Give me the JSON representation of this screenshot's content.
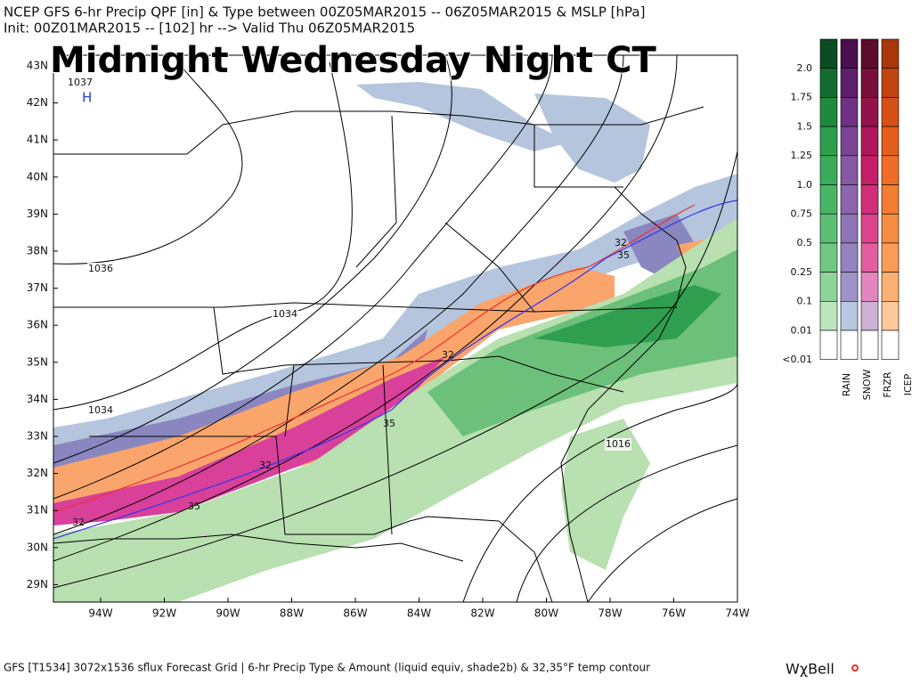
{
  "header": {
    "line1": "NCEP GFS 6-hr Precip QPF [in] & Type between 00Z05MAR2015 -- 06Z05MAR2015 & MSLP [hPa]",
    "line2": "Init: 00Z01MAR2015 -- [102] hr --> Valid Thu 06Z05MAR2015"
  },
  "overlay_title": "Midnight Wednesday Night CT",
  "map": {
    "lat_labels": [
      "43N",
      "42N",
      "41N",
      "40N",
      "39N",
      "38N",
      "37N",
      "36N",
      "35N",
      "34N",
      "33N",
      "32N",
      "31N",
      "30N",
      "29N"
    ],
    "lon_labels": [
      "94W",
      "92W",
      "90W",
      "88W",
      "86W",
      "84W",
      "82W",
      "80W",
      "78W",
      "76W",
      "74W"
    ],
    "high": {
      "pressure": "1037",
      "symbol": "H"
    },
    "isobar_labels": [
      "1036",
      "1034",
      "1034",
      "1016"
    ],
    "temp_labels": [
      "32",
      "35",
      "32",
      "35",
      "32",
      "35",
      "32"
    ]
  },
  "legend": {
    "levels": [
      "2.0",
      "1.75",
      "1.5",
      "1.25",
      "1.0",
      "0.75",
      "0.5",
      "0.25",
      "0.1",
      "0.01",
      "<0.01"
    ],
    "types": [
      "RAIN",
      "SNOW",
      "FRZR",
      "ICEP"
    ]
  },
  "footer": {
    "text": "GFS [T1534] 3072x1536 sflux Forecast Grid | 6-hr Precip Type & Amount (liquid equiv, shade2b) & 32,35°F temp contour",
    "logo": "WχBell"
  }
}
